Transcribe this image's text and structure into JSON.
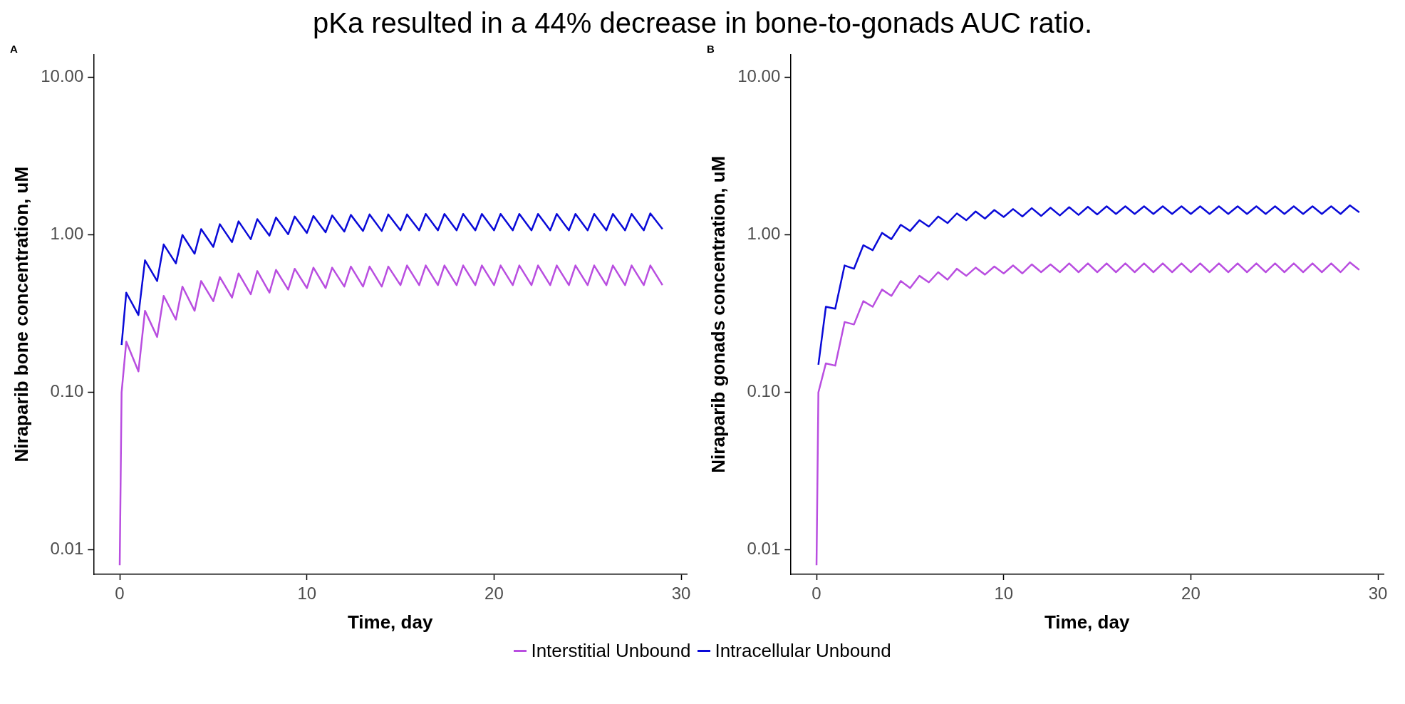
{
  "chart_data": [
    {
      "type": "line",
      "title": "pKa resulted in a 44% decrease in bone-to-gonads AUC ratio.",
      "annotations": [
        "A"
      ],
      "xlabel": "Time, day",
      "ylabel": "Niraparib bone concentration, uM",
      "log": "y",
      "legend": "bottom",
      "grid": false,
      "marker": "none",
      "line_style": "solid",
      "xlim": [
        -1.4,
        30.3
      ],
      "xticks": [
        0,
        10,
        20,
        30
      ],
      "ylim": [
        0.007,
        14
      ],
      "yticks": [
        {
          "value": 0.01,
          "label": "0.01"
        },
        {
          "value": 0.1,
          "label": "0.10"
        },
        {
          "value": 1,
          "label": "1.00"
        },
        {
          "value": 10,
          "label": "10.00"
        }
      ],
      "x": [
        0,
        0.1,
        0.35,
        1,
        1.35,
        2,
        2.35,
        3,
        3.35,
        4,
        4.35,
        5,
        5.35,
        6,
        6.35,
        7,
        7.35,
        8,
        8.35,
        9,
        9.35,
        10,
        10.35,
        11,
        11.35,
        12,
        12.35,
        13,
        13.35,
        14,
        14.35,
        15,
        15.35,
        16,
        16.35,
        17,
        17.35,
        18,
        18.35,
        19,
        19.35,
        20,
        20.35,
        21,
        21.35,
        22,
        22.35,
        23,
        23.35,
        24,
        24.35,
        25,
        25.35,
        26,
        26.35,
        27,
        27.35,
        28,
        28.35,
        29
      ],
      "series": [
        {
          "name": "Interstitial Unbound",
          "color": "#b94ee0",
          "values": [
            0.008,
            0.1,
            0.21,
            0.136,
            0.33,
            0.225,
            0.41,
            0.29,
            0.47,
            0.33,
            0.51,
            0.38,
            0.54,
            0.4,
            0.57,
            0.42,
            0.59,
            0.43,
            0.6,
            0.45,
            0.61,
            0.46,
            0.62,
            0.46,
            0.62,
            0.47,
            0.63,
            0.47,
            0.63,
            0.47,
            0.63,
            0.48,
            0.64,
            0.48,
            0.64,
            0.48,
            0.64,
            0.48,
            0.64,
            0.48,
            0.64,
            0.48,
            0.64,
            0.48,
            0.64,
            0.48,
            0.64,
            0.48,
            0.64,
            0.48,
            0.64,
            0.48,
            0.64,
            0.48,
            0.64,
            0.48,
            0.64,
            0.48,
            0.64,
            0.48
          ]
        },
        {
          "name": "Intracellular Unbound",
          "color": "#0a0ad8",
          "values": [
            null,
            0.2,
            0.43,
            0.31,
            0.69,
            0.51,
            0.87,
            0.66,
            1.0,
            0.76,
            1.09,
            0.84,
            1.17,
            0.9,
            1.22,
            0.94,
            1.26,
            0.99,
            1.29,
            1.01,
            1.31,
            1.03,
            1.32,
            1.04,
            1.33,
            1.05,
            1.34,
            1.06,
            1.35,
            1.06,
            1.35,
            1.07,
            1.35,
            1.07,
            1.36,
            1.07,
            1.36,
            1.07,
            1.36,
            1.07,
            1.36,
            1.07,
            1.36,
            1.07,
            1.36,
            1.07,
            1.36,
            1.07,
            1.36,
            1.07,
            1.36,
            1.07,
            1.36,
            1.07,
            1.36,
            1.07,
            1.36,
            1.07,
            1.37,
            1.09
          ]
        }
      ]
    },
    {
      "type": "line",
      "annotations": [
        "B"
      ],
      "xlabel": "Time, day",
      "ylabel": "Niraparib gonads concentration, uM",
      "log": "y",
      "legend": "bottom",
      "grid": false,
      "marker": "none",
      "line_style": "solid",
      "xlim": [
        -1.4,
        30.3
      ],
      "xticks": [
        0,
        10,
        20,
        30
      ],
      "ylim": [
        0.007,
        14
      ],
      "yticks": [
        {
          "value": 0.01,
          "label": "0.01"
        },
        {
          "value": 0.1,
          "label": "0.10"
        },
        {
          "value": 1,
          "label": "1.00"
        },
        {
          "value": 10,
          "label": "10.00"
        }
      ],
      "x": [
        0,
        0.1,
        0.5,
        1,
        1.5,
        2,
        2.5,
        3,
        3.5,
        4,
        4.5,
        5,
        5.5,
        6,
        6.5,
        7,
        7.5,
        8,
        8.5,
        9,
        9.5,
        10,
        10.5,
        11,
        11.5,
        12,
        12.5,
        13,
        13.5,
        14,
        14.5,
        15,
        15.5,
        16,
        16.5,
        17,
        17.5,
        18,
        18.5,
        19,
        19.5,
        20,
        20.5,
        21,
        21.5,
        22,
        22.5,
        23,
        23.5,
        24,
        24.5,
        25,
        25.5,
        26,
        26.5,
        27,
        27.5,
        28,
        28.5,
        29
      ],
      "series": [
        {
          "name": "Interstitial Unbound",
          "color": "#b94ee0",
          "values": [
            0.008,
            0.1,
            0.153,
            0.148,
            0.28,
            0.27,
            0.38,
            0.35,
            0.45,
            0.41,
            0.51,
            0.46,
            0.55,
            0.5,
            0.58,
            0.52,
            0.61,
            0.55,
            0.62,
            0.56,
            0.63,
            0.57,
            0.64,
            0.57,
            0.65,
            0.58,
            0.65,
            0.58,
            0.66,
            0.58,
            0.66,
            0.58,
            0.66,
            0.58,
            0.66,
            0.58,
            0.66,
            0.58,
            0.66,
            0.58,
            0.66,
            0.58,
            0.66,
            0.58,
            0.66,
            0.58,
            0.66,
            0.58,
            0.66,
            0.58,
            0.66,
            0.58,
            0.66,
            0.58,
            0.66,
            0.58,
            0.66,
            0.58,
            0.67,
            0.6
          ]
        },
        {
          "name": "Intracellular Unbound",
          "color": "#0a0ad8",
          "values": [
            null,
            0.15,
            0.35,
            0.34,
            0.64,
            0.61,
            0.86,
            0.8,
            1.03,
            0.94,
            1.16,
            1.06,
            1.24,
            1.13,
            1.31,
            1.19,
            1.37,
            1.24,
            1.41,
            1.27,
            1.44,
            1.3,
            1.46,
            1.31,
            1.48,
            1.32,
            1.49,
            1.33,
            1.5,
            1.34,
            1.51,
            1.35,
            1.52,
            1.36,
            1.52,
            1.36,
            1.52,
            1.36,
            1.52,
            1.36,
            1.52,
            1.36,
            1.52,
            1.36,
            1.52,
            1.36,
            1.52,
            1.36,
            1.52,
            1.36,
            1.52,
            1.36,
            1.52,
            1.36,
            1.52,
            1.36,
            1.52,
            1.36,
            1.54,
            1.39
          ]
        }
      ]
    }
  ]
}
